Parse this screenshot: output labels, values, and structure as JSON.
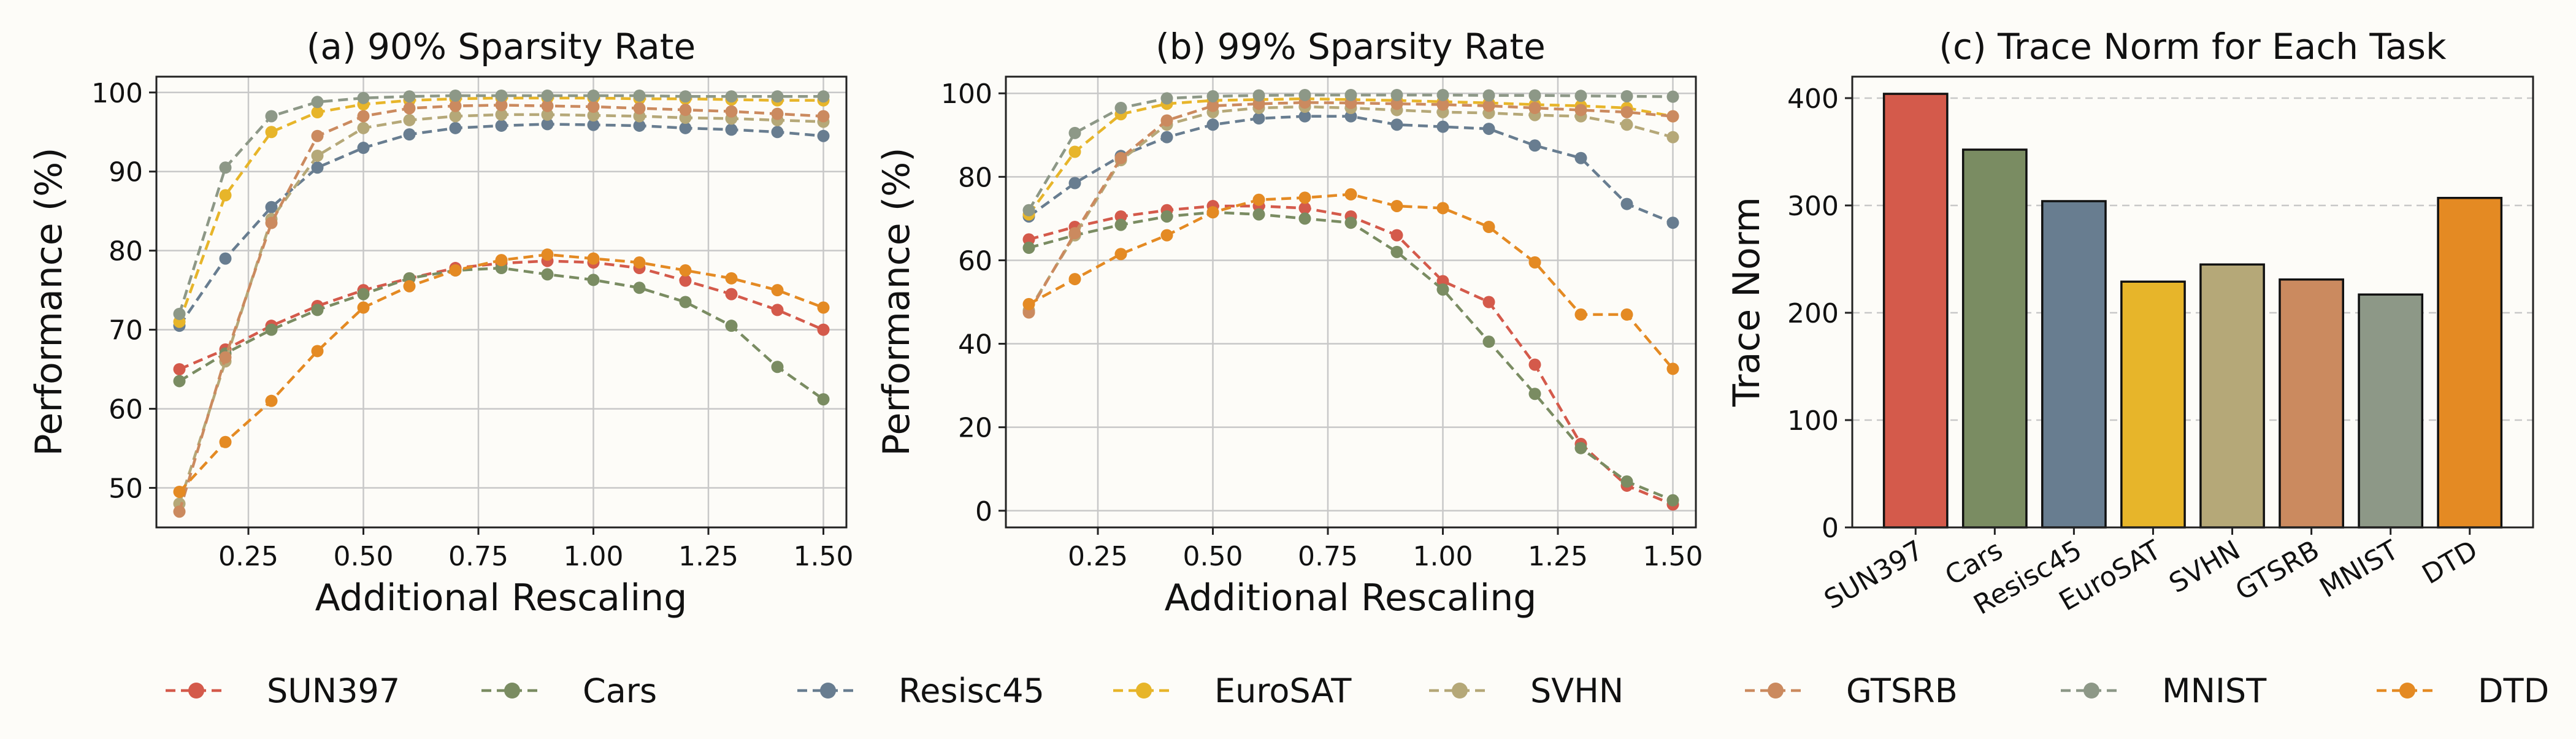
{
  "colors": {
    "SUN397": "#d45a4b",
    "Cars": "#7a8c62",
    "Resisc45": "#687d90",
    "EuroSAT": "#e7b52a",
    "SVHN": "#b5a878",
    "GTSRB": "#cb8a5f",
    "MNIST": "#8d9887",
    "DTD": "#e48a23",
    "grid": "#c8c8c8"
  },
  "legend": [
    "SUN397",
    "Cars",
    "Resisc45",
    "EuroSAT",
    "SVHN",
    "GTSRB",
    "MNIST",
    "DTD"
  ],
  "chart_data": [
    {
      "type": "line",
      "title": "(a) 90% Sparsity Rate",
      "xlabel": "Additional Rescaling",
      "ylabel": "Performance (%)",
      "xlim": [
        0.05,
        1.55
      ],
      "ylim": [
        45,
        102
      ],
      "xticks": [
        0.25,
        0.5,
        0.75,
        1.0,
        1.25,
        1.5
      ],
      "xtick_labels": [
        "0.25",
        "0.50",
        "0.75",
        "1.00",
        "1.25",
        "1.50"
      ],
      "yticks": [
        50,
        60,
        70,
        80,
        90,
        100
      ],
      "ytick_labels": [
        "50",
        "60",
        "70",
        "80",
        "90",
        "100"
      ],
      "grid": true,
      "x": [
        0.1,
        0.2,
        0.3,
        0.4,
        0.5,
        0.6,
        0.7,
        0.8,
        0.9,
        1.0,
        1.1,
        1.2,
        1.3,
        1.4,
        1.5
      ],
      "series": [
        {
          "name": "SUN397",
          "values": [
            65.0,
            67.5,
            70.5,
            73.0,
            75.0,
            76.5,
            77.8,
            78.4,
            78.7,
            78.5,
            77.8,
            76.2,
            74.5,
            72.5,
            70.0
          ]
        },
        {
          "name": "Cars",
          "values": [
            63.5,
            67.0,
            70.0,
            72.5,
            74.5,
            76.5,
            77.5,
            77.8,
            77.0,
            76.3,
            75.3,
            73.5,
            70.5,
            65.3,
            61.2
          ]
        },
        {
          "name": "Resisc45",
          "values": [
            70.5,
            79.0,
            85.5,
            90.5,
            93.0,
            94.7,
            95.5,
            95.8,
            96.0,
            95.9,
            95.8,
            95.5,
            95.3,
            95.0,
            94.5
          ]
        },
        {
          "name": "EuroSAT",
          "values": [
            71.0,
            87.0,
            95.0,
            97.5,
            98.5,
            99.0,
            99.2,
            99.3,
            99.3,
            99.3,
            99.2,
            99.2,
            99.1,
            99.0,
            99.0
          ]
        },
        {
          "name": "SVHN",
          "values": [
            48.0,
            66.0,
            84.0,
            92.0,
            95.5,
            96.5,
            97.0,
            97.2,
            97.2,
            97.1,
            97.0,
            96.8,
            96.7,
            96.5,
            96.3
          ]
        },
        {
          "name": "GTSRB",
          "values": [
            47.0,
            66.5,
            83.5,
            94.5,
            97.0,
            98.0,
            98.3,
            98.4,
            98.3,
            98.2,
            98.0,
            97.8,
            97.6,
            97.3,
            97.0
          ]
        },
        {
          "name": "MNIST",
          "values": [
            72.0,
            90.5,
            97.0,
            98.8,
            99.3,
            99.5,
            99.6,
            99.6,
            99.6,
            99.6,
            99.6,
            99.5,
            99.5,
            99.5,
            99.5
          ]
        },
        {
          "name": "DTD",
          "values": [
            49.5,
            55.8,
            61.0,
            67.3,
            72.8,
            75.5,
            77.5,
            78.8,
            79.5,
            79.0,
            78.5,
            77.5,
            76.5,
            75.0,
            72.8
          ]
        }
      ]
    },
    {
      "type": "line",
      "title": "(b) 99% Sparsity Rate",
      "xlabel": "Additional Rescaling",
      "ylabel": "Performance (%)",
      "xlim": [
        0.05,
        1.55
      ],
      "ylim": [
        -4,
        104
      ],
      "xticks": [
        0.25,
        0.5,
        0.75,
        1.0,
        1.25,
        1.5
      ],
      "xtick_labels": [
        "0.25",
        "0.50",
        "0.75",
        "1.00",
        "1.25",
        "1.50"
      ],
      "yticks": [
        0,
        20,
        40,
        60,
        80,
        100
      ],
      "ytick_labels": [
        "0",
        "20",
        "40",
        "60",
        "80",
        "100"
      ],
      "grid": true,
      "x": [
        0.1,
        0.2,
        0.3,
        0.4,
        0.5,
        0.6,
        0.7,
        0.8,
        0.9,
        1.0,
        1.1,
        1.2,
        1.3,
        1.4,
        1.5
      ],
      "series": [
        {
          "name": "SUN397",
          "values": [
            65.0,
            68.0,
            70.5,
            72.0,
            73.0,
            73.0,
            72.5,
            70.5,
            66.0,
            55.0,
            50.0,
            35.0,
            16.0,
            6.0,
            1.5
          ]
        },
        {
          "name": "Cars",
          "values": [
            63.0,
            66.0,
            68.5,
            70.5,
            71.5,
            71.0,
            70.0,
            69.0,
            62.0,
            53.0,
            40.5,
            28.0,
            15.0,
            7.0,
            2.5
          ]
        },
        {
          "name": "Resisc45",
          "values": [
            70.5,
            78.5,
            85.0,
            89.5,
            92.5,
            94.0,
            94.5,
            94.5,
            92.5,
            92.0,
            91.5,
            87.5,
            84.5,
            73.5,
            69.0
          ]
        },
        {
          "name": "EuroSAT",
          "values": [
            71.0,
            86.0,
            95.0,
            97.5,
            98.3,
            98.5,
            98.7,
            98.5,
            98.3,
            98.0,
            97.7,
            97.3,
            97.0,
            96.5,
            94.5
          ]
        },
        {
          "name": "SVHN",
          "values": [
            48.0,
            66.0,
            84.0,
            92.5,
            95.5,
            96.5,
            96.8,
            96.5,
            96.0,
            95.5,
            95.3,
            94.8,
            94.5,
            92.5,
            89.5
          ]
        },
        {
          "name": "GTSRB",
          "values": [
            47.5,
            66.5,
            84.5,
            93.5,
            97.0,
            97.5,
            97.8,
            97.7,
            97.5,
            97.3,
            97.0,
            96.5,
            96.0,
            95.5,
            94.5
          ]
        },
        {
          "name": "MNIST",
          "values": [
            72.0,
            90.5,
            96.5,
            98.8,
            99.3,
            99.5,
            99.6,
            99.6,
            99.6,
            99.6,
            99.5,
            99.5,
            99.4,
            99.3,
            99.2
          ]
        },
        {
          "name": "DTD",
          "values": [
            49.5,
            55.5,
            61.5,
            66.0,
            71.5,
            74.5,
            75.0,
            75.8,
            73.0,
            72.5,
            68.0,
            59.5,
            47.0,
            47.0,
            34.0
          ]
        }
      ]
    },
    {
      "type": "bar",
      "title": "(c) Trace Norm for Each Task",
      "xlabel": "",
      "ylabel": "Trace Norm",
      "ylim": [
        0,
        420
      ],
      "yticks": [
        0,
        100,
        200,
        300,
        400
      ],
      "ytick_labels": [
        "0",
        "100",
        "200",
        "300",
        "400"
      ],
      "grid": true,
      "categories": [
        "SUN397",
        "Cars",
        "Resisc45",
        "EuroSAT",
        "SVHN",
        "GTSRB",
        "MNIST",
        "DTD"
      ],
      "values": [
        404,
        352,
        304,
        229,
        245,
        231,
        217,
        307
      ]
    }
  ]
}
